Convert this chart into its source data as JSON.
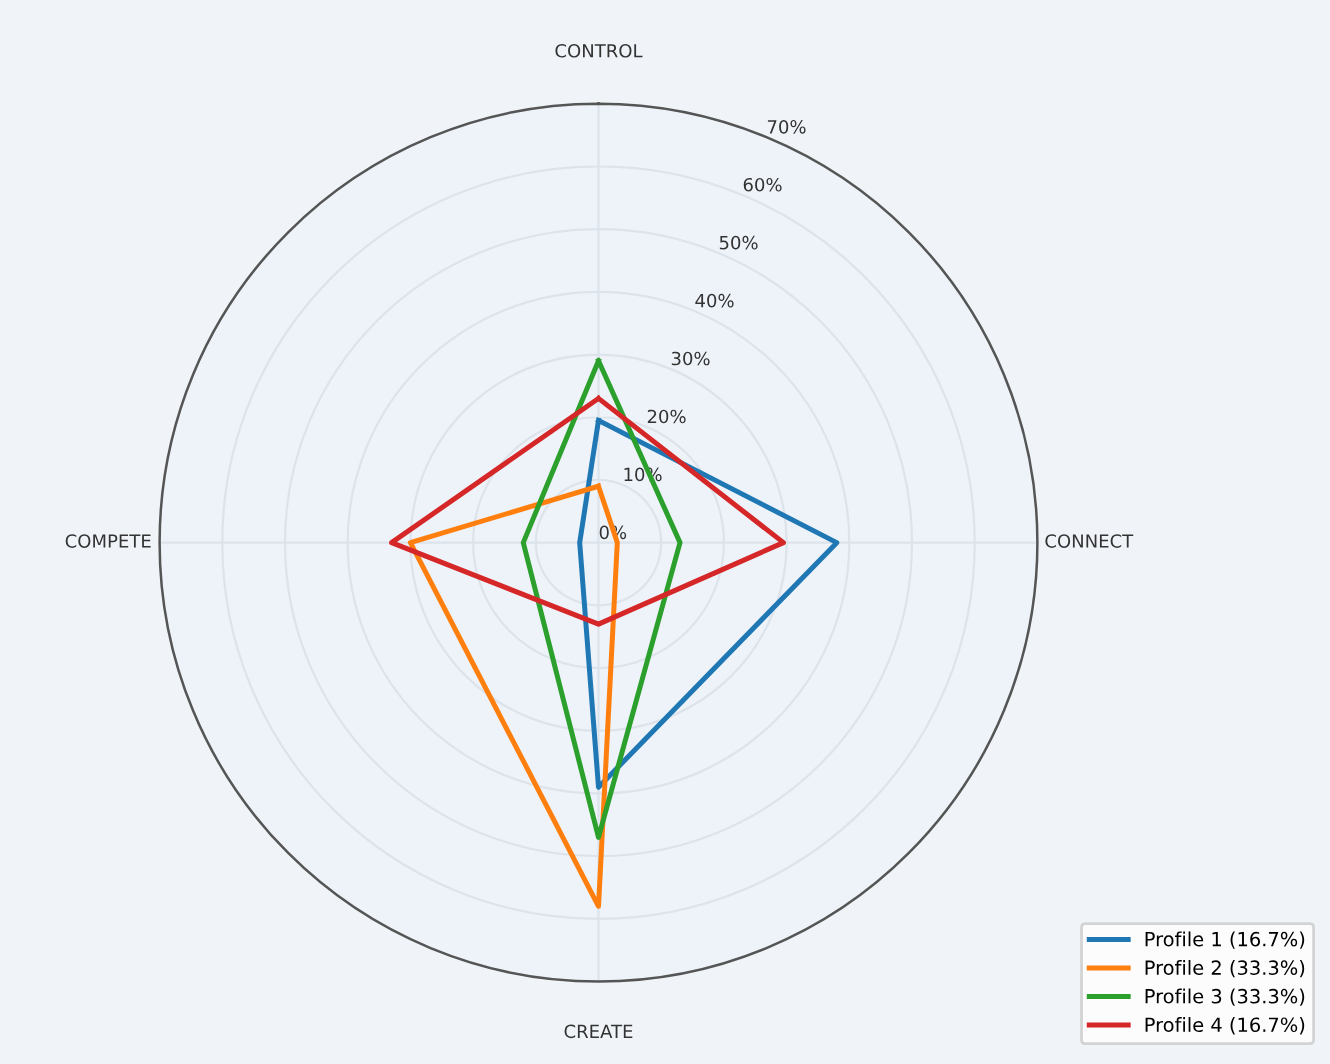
{
  "chart_data": {
    "type": "radar",
    "categories": [
      "CONTROL",
      "CONNECT",
      "CREATE",
      "COMPETE"
    ],
    "series": [
      {
        "name": "Profile 1 (16.7%)",
        "color": "#1f77b4",
        "values": [
          19.5,
          38,
          39,
          3
        ]
      },
      {
        "name": "Profile 2 (33.3%)",
        "color": "#ff7f0e",
        "values": [
          9,
          3,
          58,
          30
        ]
      },
      {
        "name": "Profile 3 (33.3%)",
        "color": "#2ca02c",
        "values": [
          29,
          13,
          47,
          12
        ]
      },
      {
        "name": "Profile 4 (16.7%)",
        "color": "#d62728",
        "values": [
          23,
          29.5,
          13,
          33
        ]
      }
    ],
    "ylim": [
      0,
      70
    ],
    "yticks": [
      {
        "value": 0,
        "label": "0%"
      },
      {
        "value": 10,
        "label": "10%"
      },
      {
        "value": 20,
        "label": "20%"
      },
      {
        "value": 30,
        "label": "30%"
      },
      {
        "value": 40,
        "label": "40%"
      },
      {
        "value": 50,
        "label": "50%"
      },
      {
        "value": 60,
        "label": "60%"
      },
      {
        "value": 70,
        "label": "70%"
      }
    ],
    "grid": true,
    "legend": "bottom right",
    "marker": "none",
    "line_style": "solid"
  }
}
